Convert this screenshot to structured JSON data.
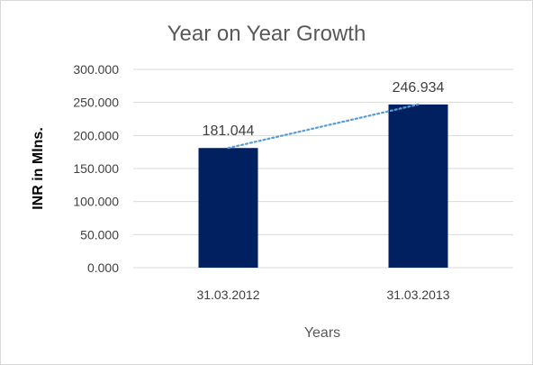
{
  "chart_data": {
    "type": "bar",
    "title": "Year on Year Growth",
    "xlabel": "Years",
    "ylabel": "INR in Mlns.",
    "categories": [
      "31.03.2012",
      "31.03.2013"
    ],
    "values": [
      181.044,
      246.934
    ],
    "value_labels": [
      "181.044",
      "246.934"
    ],
    "ylim": [
      0,
      300
    ],
    "y_ticks": [
      0,
      50,
      100,
      150,
      200,
      250,
      300
    ],
    "y_tick_labels": [
      "0.000",
      "50.000",
      "100.000",
      "150.000",
      "200.000",
      "250.000",
      "300.000"
    ],
    "grid": true,
    "trendline": "linear",
    "bar_color": "#002060",
    "trendline_color": "#5b9bd5",
    "grid_color": "#d9d9d9"
  }
}
